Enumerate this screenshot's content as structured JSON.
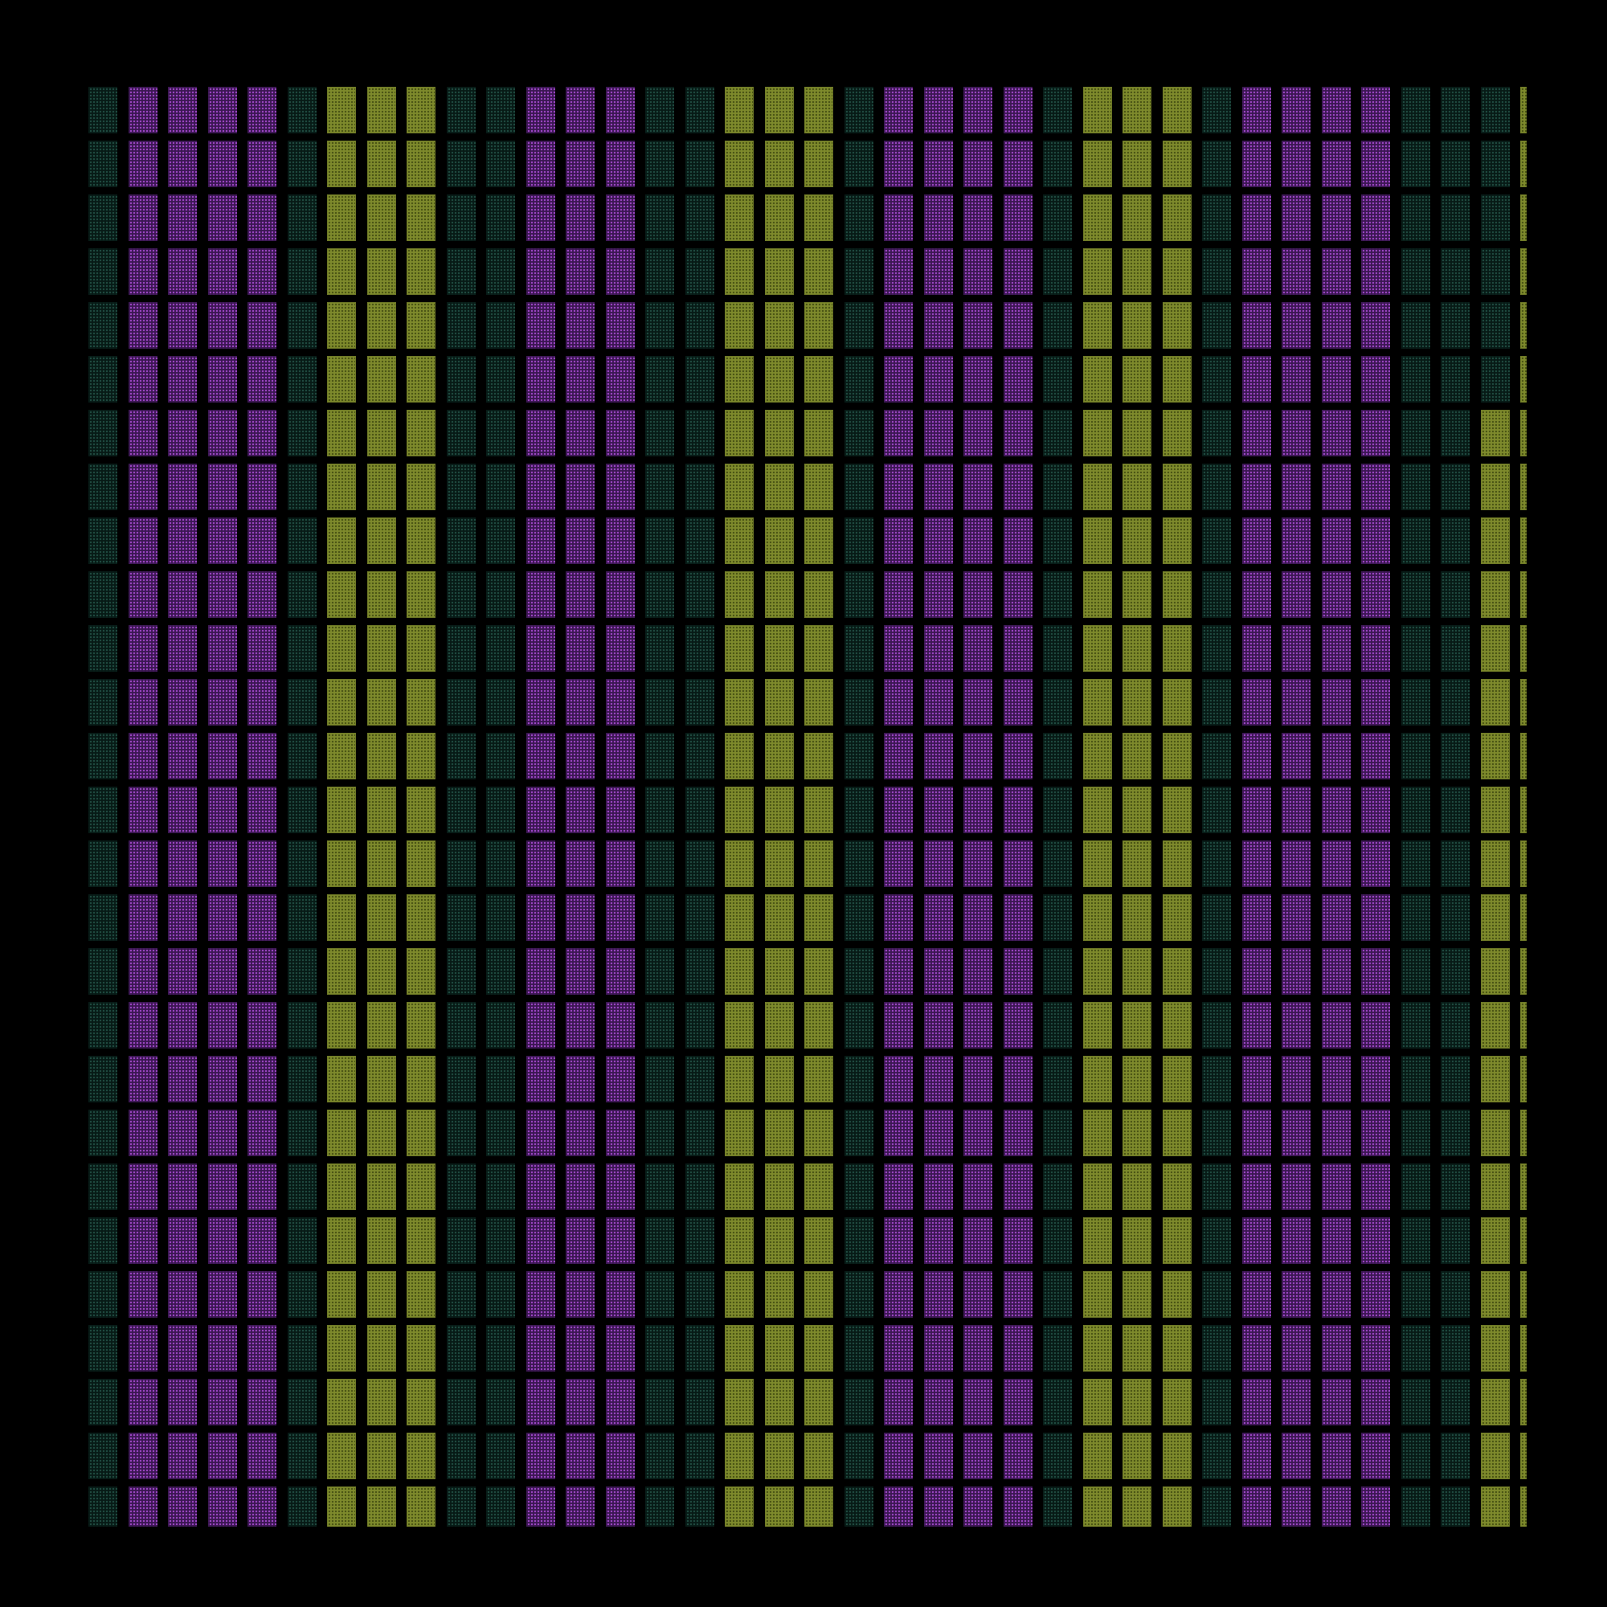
{
  "pattern": {
    "column_kinds": [
      "d",
      "p",
      "p",
      "p",
      "p",
      "d",
      "y",
      "y",
      "y",
      "d",
      "d",
      "p",
      "p",
      "p",
      "d",
      "d",
      "y",
      "y",
      "y",
      "d",
      "p",
      "p",
      "p",
      "p",
      "d",
      "y",
      "y",
      "y",
      "d",
      "p",
      "p",
      "p",
      "p",
      "d",
      "d",
      "y",
      "y"
    ],
    "row_count": 27,
    "partial_columns": [
      {
        "column": 35,
        "kind_top": "d",
        "kind_bottom": "y",
        "switch_row": 6
      }
    ],
    "last_column_clipped": true
  },
  "palette": {
    "background": "#000000",
    "yellow": "#7e8a2c",
    "yellow_dot": "#4a5414",
    "purple": "#3b1752",
    "purple_dot": "#9b45c2",
    "dark": "#071a16",
    "dark_dot": "#1f4a40"
  }
}
